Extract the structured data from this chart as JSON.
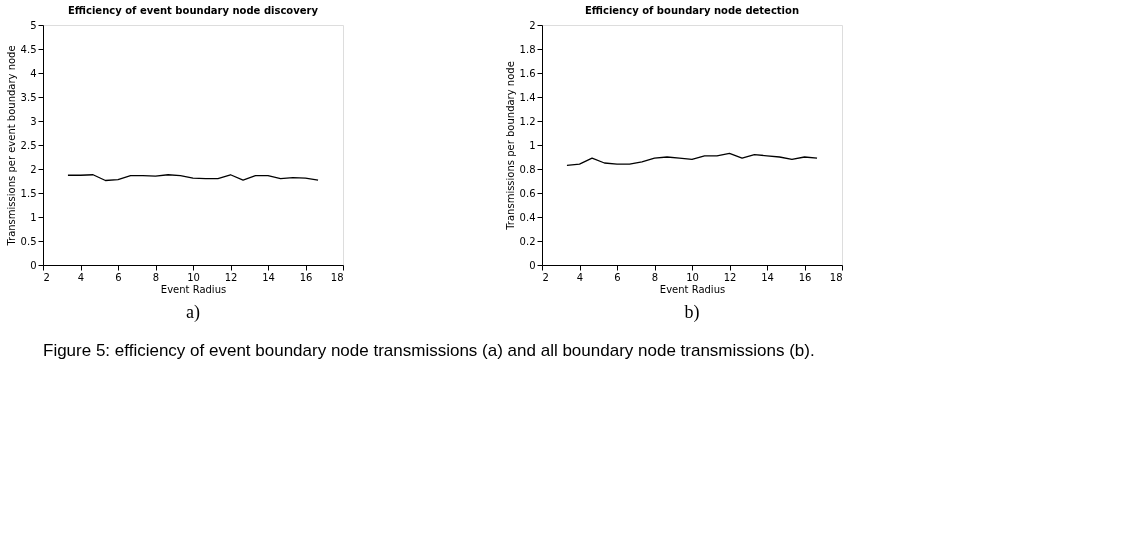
{
  "chart_data": [
    {
      "type": "line",
      "title": "Efficiency of event boundary node discovery",
      "xlabel": "Event Radius",
      "ylabel": "Transmissions per event boundary node",
      "x": [
        3.33,
        4,
        4.67,
        5.33,
        6,
        6.67,
        7.33,
        8,
        8.67,
        9.33,
        10,
        10.67,
        11.33,
        12,
        12.67,
        13.33,
        14,
        14.67,
        15.33,
        16,
        16.67
      ],
      "series": [
        {
          "color": "#000000",
          "values": [
            1.87,
            1.87,
            1.88,
            1.76,
            1.78,
            1.86,
            1.86,
            1.85,
            1.88,
            1.86,
            1.81,
            1.8,
            1.8,
            1.88,
            1.77,
            1.86,
            1.86,
            1.8,
            1.82,
            1.81,
            1.77
          ]
        }
      ],
      "xlim": [
        2,
        18
      ],
      "xticks": [
        2,
        4,
        6,
        8,
        10,
        12,
        14,
        16,
        18
      ],
      "ylim": [
        0,
        5
      ],
      "yticks": [
        0,
        0.5,
        1,
        1.5,
        2,
        2.5,
        3,
        3.5,
        4,
        4.5,
        5
      ],
      "grid": false,
      "annotations": [
        "a)"
      ]
    },
    {
      "type": "line",
      "title": "Efficiency of boundary node detection",
      "xlabel": "Event Radius",
      "ylabel": "Transmissions per boundary node",
      "x": [
        3.33,
        4,
        4.67,
        5.33,
        6,
        6.67,
        7.33,
        8,
        8.67,
        9.33,
        10,
        10.67,
        11.33,
        12,
        12.67,
        13.33,
        14,
        14.67,
        15.33,
        16,
        16.67
      ],
      "series": [
        {
          "color": "#000000",
          "values": [
            0.83,
            0.84,
            0.89,
            0.85,
            0.84,
            0.84,
            0.86,
            0.89,
            0.9,
            0.89,
            0.88,
            0.91,
            0.91,
            0.93,
            0.89,
            0.92,
            0.91,
            0.9,
            0.88,
            0.9,
            0.89
          ]
        }
      ],
      "xlim": [
        2,
        18
      ],
      "xticks": [
        2,
        4,
        6,
        8,
        10,
        12,
        14,
        16,
        18
      ],
      "ylim": [
        0,
        2
      ],
      "yticks": [
        0,
        0.2,
        0.4,
        0.6,
        0.8,
        1,
        1.2,
        1.4,
        1.6,
        1.8,
        2
      ],
      "grid": false,
      "annotations": [
        "b)",
        "Figure 5: efficiency of event boundary node transmissions (a) and all boundary node transmissions (b)."
      ]
    }
  ]
}
